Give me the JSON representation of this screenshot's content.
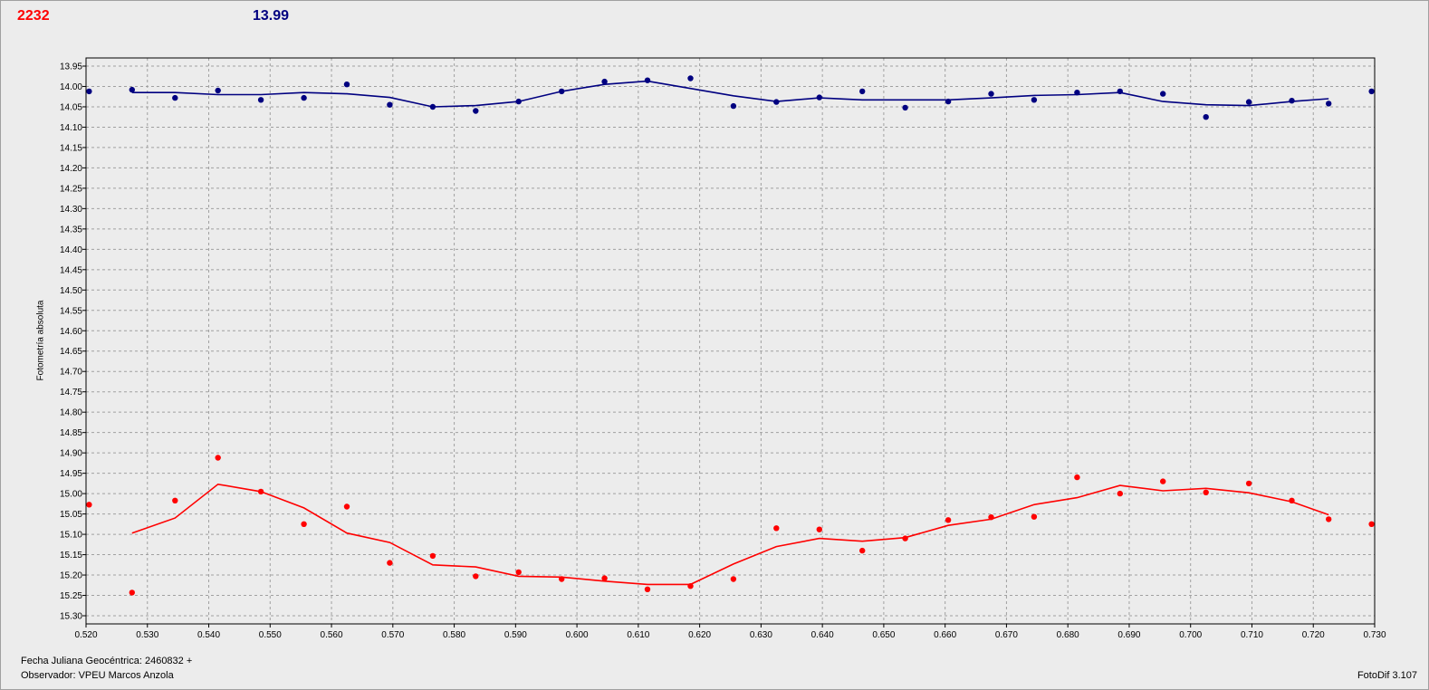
{
  "header": {
    "red_value": "2232",
    "blue_value": "13.99"
  },
  "footer": {
    "date_label": "Fecha Juliana Geocéntrica: 2460832 +",
    "observer_label": "Observador: VPEU Marcos Anzola",
    "version_label": "FotoDif 3.107"
  },
  "colors": {
    "red_series": "#ff0000",
    "blue_series": "#000080",
    "grid": "#a0a0a0",
    "plot_background": "#ececec"
  },
  "chart_data": {
    "type": "scatter",
    "ylabel": "Fotometría absoluta",
    "xlabel": "",
    "xlim": [
      0.52,
      0.73
    ],
    "ylim": [
      13.93,
      15.32
    ],
    "y_inverted": true,
    "grid": true,
    "x_ticks": [
      "0.520",
      "0.530",
      "0.540",
      "0.550",
      "0.560",
      "0.570",
      "0.580",
      "0.590",
      "0.600",
      "0.610",
      "0.620",
      "0.630",
      "0.640",
      "0.650",
      "0.660",
      "0.670",
      "0.680",
      "0.690",
      "0.700",
      "0.710",
      "0.720",
      "0.730"
    ],
    "y_ticks": [
      "13.95",
      "14.00",
      "14.05",
      "14.10",
      "14.15",
      "14.20",
      "14.25",
      "14.30",
      "14.35",
      "14.40",
      "14.45",
      "14.50",
      "14.55",
      "14.60",
      "14.65",
      "14.70",
      "14.75",
      "14.80",
      "14.85",
      "14.90",
      "14.95",
      "15.00",
      "15.05",
      "15.10",
      "15.15",
      "15.20",
      "15.25",
      "15.30"
    ],
    "series": [
      {
        "color": "#000080",
        "points": [
          [
            0.5205,
            14.012
          ],
          [
            0.5275,
            14.008
          ],
          [
            0.5345,
            14.028
          ],
          [
            0.5415,
            14.01
          ],
          [
            0.5485,
            14.033
          ],
          [
            0.5555,
            14.028
          ],
          [
            0.5625,
            13.995
          ],
          [
            0.5695,
            14.045
          ],
          [
            0.5765,
            14.05
          ],
          [
            0.5835,
            14.06
          ],
          [
            0.5905,
            14.037
          ],
          [
            0.5975,
            14.012
          ],
          [
            0.6045,
            13.988
          ],
          [
            0.6115,
            13.985
          ],
          [
            0.6185,
            13.98
          ],
          [
            0.6255,
            14.048
          ],
          [
            0.6325,
            14.038
          ],
          [
            0.6395,
            14.027
          ],
          [
            0.6465,
            14.012
          ],
          [
            0.6535,
            14.052
          ],
          [
            0.6605,
            14.037
          ],
          [
            0.6675,
            14.018
          ],
          [
            0.6745,
            14.033
          ],
          [
            0.6815,
            14.015
          ],
          [
            0.6885,
            14.012
          ],
          [
            0.6955,
            14.018
          ],
          [
            0.7025,
            14.075
          ],
          [
            0.7095,
            14.038
          ],
          [
            0.7165,
            14.035
          ],
          [
            0.7225,
            14.042
          ],
          [
            0.7295,
            14.012
          ]
        ],
        "trend": [
          [
            0.5275,
            14.015
          ],
          [
            0.5345,
            14.015
          ],
          [
            0.5415,
            14.02
          ],
          [
            0.5485,
            14.02
          ],
          [
            0.5555,
            14.015
          ],
          [
            0.5625,
            14.018
          ],
          [
            0.5695,
            14.027
          ],
          [
            0.5765,
            14.05
          ],
          [
            0.5835,
            14.047
          ],
          [
            0.5905,
            14.037
          ],
          [
            0.5975,
            14.012
          ],
          [
            0.6045,
            13.995
          ],
          [
            0.6115,
            13.987
          ],
          [
            0.6185,
            14.005
          ],
          [
            0.6255,
            14.023
          ],
          [
            0.6325,
            14.037
          ],
          [
            0.6395,
            14.028
          ],
          [
            0.6465,
            14.033
          ],
          [
            0.6535,
            14.033
          ],
          [
            0.6605,
            14.033
          ],
          [
            0.6675,
            14.028
          ],
          [
            0.6745,
            14.022
          ],
          [
            0.6815,
            14.02
          ],
          [
            0.6885,
            14.015
          ],
          [
            0.6955,
            14.037
          ],
          [
            0.7025,
            14.045
          ],
          [
            0.7095,
            14.047
          ],
          [
            0.7165,
            14.037
          ],
          [
            0.7225,
            14.03
          ]
        ]
      },
      {
        "color": "#ff0000",
        "points": [
          [
            0.5205,
            15.027
          ],
          [
            0.5275,
            15.243
          ],
          [
            0.5345,
            15.017
          ],
          [
            0.5415,
            14.912
          ],
          [
            0.5485,
            14.995
          ],
          [
            0.5555,
            15.075
          ],
          [
            0.5625,
            15.032
          ],
          [
            0.5695,
            15.17
          ],
          [
            0.5765,
            15.153
          ],
          [
            0.5835,
            15.203
          ],
          [
            0.5905,
            15.193
          ],
          [
            0.5975,
            15.21
          ],
          [
            0.6045,
            15.208
          ],
          [
            0.6115,
            15.235
          ],
          [
            0.6185,
            15.227
          ],
          [
            0.6255,
            15.21
          ],
          [
            0.6325,
            15.085
          ],
          [
            0.6395,
            15.088
          ],
          [
            0.6465,
            15.14
          ],
          [
            0.6535,
            15.11
          ],
          [
            0.6605,
            15.065
          ],
          [
            0.6675,
            15.058
          ],
          [
            0.6745,
            15.057
          ],
          [
            0.6815,
            14.96
          ],
          [
            0.6885,
            15.0
          ],
          [
            0.6955,
            14.97
          ],
          [
            0.7025,
            14.997
          ],
          [
            0.7095,
            14.975
          ],
          [
            0.7165,
            15.017
          ],
          [
            0.7225,
            15.063
          ],
          [
            0.7295,
            15.075
          ]
        ],
        "trend": [
          [
            0.5275,
            15.097
          ],
          [
            0.5345,
            15.06
          ],
          [
            0.5415,
            14.977
          ],
          [
            0.5485,
            14.995
          ],
          [
            0.5555,
            15.035
          ],
          [
            0.5625,
            15.097
          ],
          [
            0.5695,
            15.12
          ],
          [
            0.5765,
            15.175
          ],
          [
            0.5835,
            15.18
          ],
          [
            0.5905,
            15.203
          ],
          [
            0.5975,
            15.205
          ],
          [
            0.6045,
            15.215
          ],
          [
            0.6115,
            15.223
          ],
          [
            0.6185,
            15.223
          ],
          [
            0.6255,
            15.173
          ],
          [
            0.6325,
            15.13
          ],
          [
            0.6395,
            15.11
          ],
          [
            0.6465,
            15.117
          ],
          [
            0.6535,
            15.108
          ],
          [
            0.6605,
            15.078
          ],
          [
            0.6675,
            15.063
          ],
          [
            0.6745,
            15.027
          ],
          [
            0.6815,
            15.01
          ],
          [
            0.6885,
            14.98
          ],
          [
            0.6955,
            14.993
          ],
          [
            0.7025,
            14.987
          ],
          [
            0.7095,
            14.998
          ],
          [
            0.7165,
            15.02
          ],
          [
            0.7225,
            15.052
          ]
        ]
      }
    ]
  }
}
